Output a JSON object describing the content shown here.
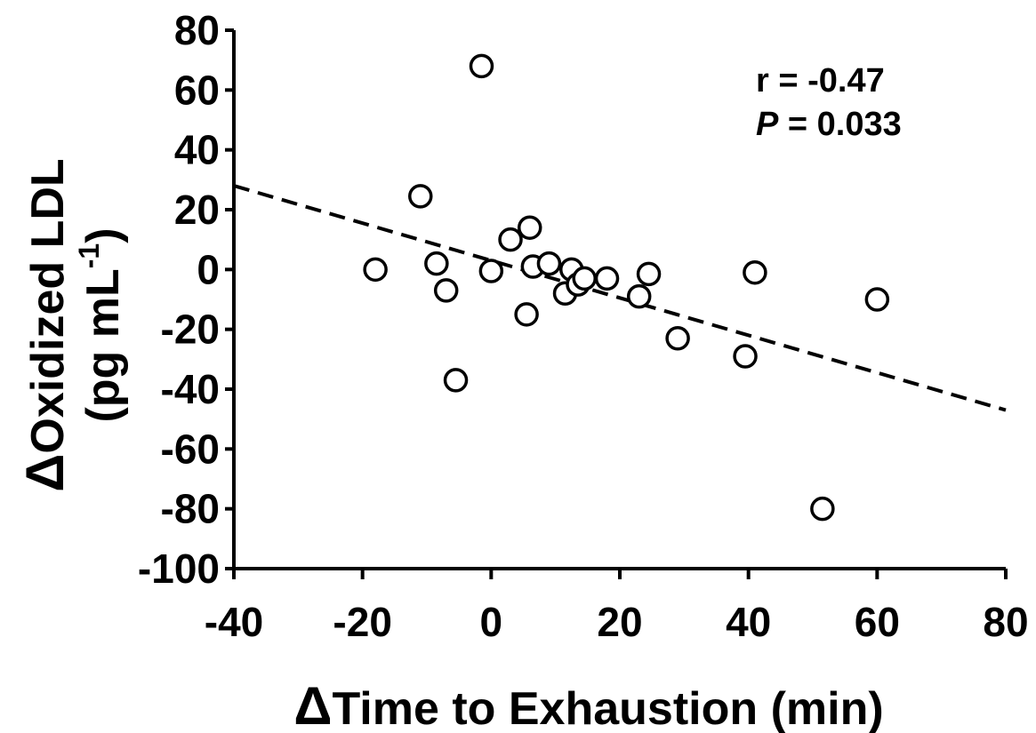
{
  "chart_data": {
    "type": "scatter",
    "xlabel": "Time to Exhaustion (min)",
    "ylabel_line1": "Oxidized LDL",
    "ylabel_line2": "(pg mL",
    "ylabel_sup": "-1",
    "ylabel_close": ")",
    "delta_symbol": "Δ",
    "xlim": [
      -40,
      80
    ],
    "ylim": [
      -100,
      80
    ],
    "xticks": [
      -40,
      -20,
      0,
      20,
      40,
      60,
      80
    ],
    "yticks": [
      80,
      60,
      40,
      20,
      0,
      -20,
      -40,
      -60,
      -80,
      -100
    ],
    "xtick_labels": [
      "-40",
      "-20",
      "0",
      "20",
      "40",
      "60",
      "80"
    ],
    "ytick_labels": [
      "80",
      "60",
      "40",
      "20",
      "0",
      "-20",
      "-40",
      "-60",
      "-80",
      "-100"
    ],
    "annotation": {
      "r_text": "r = -0.47",
      "p_label": "P",
      "p_value_text": " = 0.033"
    },
    "trendline": {
      "style": "dashed",
      "x": [
        -40,
        80
      ],
      "y": [
        28,
        -47
      ]
    },
    "marker": "open-circle",
    "points": [
      {
        "x": -18,
        "y": 0
      },
      {
        "x": -11,
        "y": 24.5
      },
      {
        "x": -8.5,
        "y": 2
      },
      {
        "x": -7,
        "y": -7
      },
      {
        "x": -5.5,
        "y": -37
      },
      {
        "x": -1.5,
        "y": 68
      },
      {
        "x": 0,
        "y": -0.5
      },
      {
        "x": 3,
        "y": 10
      },
      {
        "x": 5.5,
        "y": -15
      },
      {
        "x": 6,
        "y": 14
      },
      {
        "x": 6.5,
        "y": 1
      },
      {
        "x": 9,
        "y": 2
      },
      {
        "x": 11.5,
        "y": -8
      },
      {
        "x": 12.5,
        "y": 0
      },
      {
        "x": 13.5,
        "y": -5
      },
      {
        "x": 14.5,
        "y": -3
      },
      {
        "x": 18,
        "y": -3
      },
      {
        "x": 23,
        "y": -9
      },
      {
        "x": 24.5,
        "y": -1.5
      },
      {
        "x": 29,
        "y": -23
      },
      {
        "x": 39.5,
        "y": -29
      },
      {
        "x": 41,
        "y": -1
      },
      {
        "x": 51.5,
        "y": -80
      },
      {
        "x": 60,
        "y": -10
      }
    ]
  }
}
